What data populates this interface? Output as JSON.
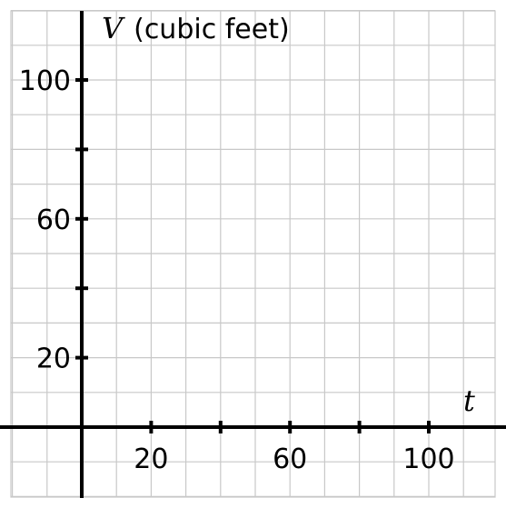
{
  "chart_data": {
    "type": "scatter",
    "title": "",
    "xlabel": "t",
    "ylabel": {
      "variable": "V",
      "unit": "(cubic feet)"
    },
    "xlim": [
      -20,
      120
    ],
    "ylim": [
      -20,
      120
    ],
    "grid": true,
    "grid_step": 10,
    "x_ticks": [
      20,
      40,
      60,
      80,
      100
    ],
    "x_tick_labels": [
      "20",
      "",
      "60",
      "",
      "100"
    ],
    "y_ticks": [
      20,
      40,
      60,
      80,
      100
    ],
    "y_tick_labels": [
      "20",
      "",
      "60",
      "",
      "100"
    ],
    "series": []
  }
}
